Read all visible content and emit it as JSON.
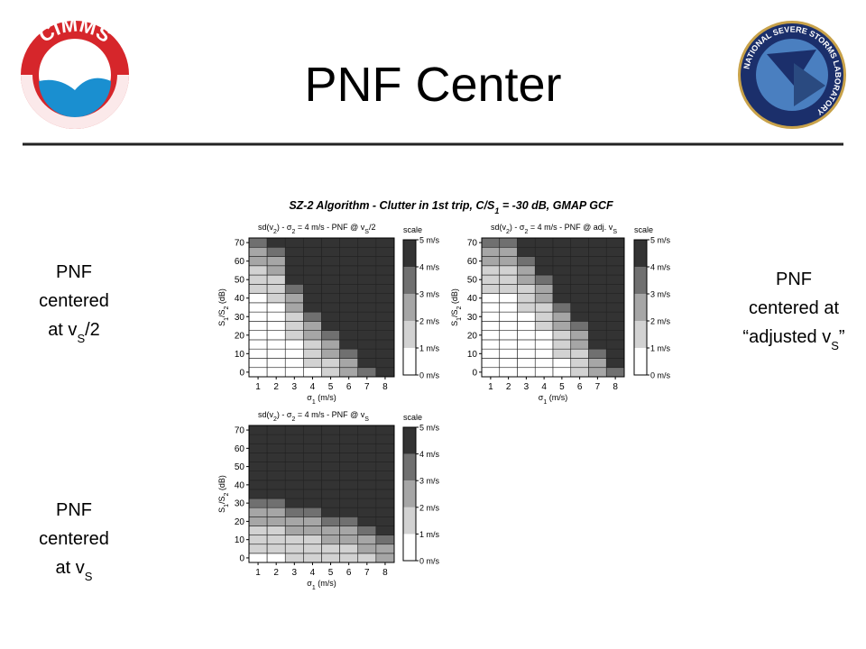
{
  "header": {
    "title": "PNF Center"
  },
  "logos": {
    "left": "CIMMS",
    "right": "NATIONAL SEVERE STORMS LABORATORY"
  },
  "figure_title": [
    "SZ-2 Algorithm - Clutter in 1st trip, C/S",
    "1",
    " = -30 dB, GMAP GCF"
  ],
  "side_labels": [
    {
      "lines": [
        [
          "PNF"
        ],
        [
          "centered"
        ],
        [
          "at v",
          "S",
          "/2"
        ]
      ]
    },
    {
      "lines": [
        [
          "PNF"
        ],
        [
          "centered at"
        ],
        [
          "“adjusted v",
          "S",
          "”"
        ]
      ]
    },
    {
      "lines": [
        [
          "PNF"
        ],
        [
          "centered"
        ],
        [
          "at v",
          "S"
        ]
      ]
    }
  ],
  "chart_data": [
    {
      "type": "heatmap",
      "title": [
        "sd(v",
        "2",
        ") - σ",
        "2",
        " = 4 m/s - PNF @ v",
        "S",
        "/2"
      ],
      "x_label": [
        "σ",
        "1",
        " (m/s)"
      ],
      "y_label": [
        "S",
        "1",
        "/S",
        "2",
        " (dB)"
      ],
      "x": [
        1,
        2,
        3,
        4,
        5,
        6,
        7,
        8
      ],
      "xlim": [
        0.5,
        8.5
      ],
      "y": [
        0,
        5,
        10,
        15,
        20,
        25,
        30,
        35,
        40,
        45,
        50,
        55,
        60,
        65,
        70
      ],
      "ylim": [
        -2.5,
        72.5
      ],
      "yticks": [
        0,
        10,
        20,
        30,
        40,
        50,
        60,
        70
      ],
      "values": [
        [
          0.5,
          0.5,
          0.5,
          0.5,
          1.5,
          2.5,
          3.5,
          4.5
        ],
        [
          0.5,
          0.5,
          0.5,
          1.5,
          1.5,
          2.5,
          4.5,
          4.5
        ],
        [
          0.5,
          0.5,
          0.5,
          1.5,
          2.5,
          3.5,
          4.5,
          4.5
        ],
        [
          0.5,
          0.5,
          0.5,
          1.5,
          2.5,
          4.5,
          4.5,
          4.5
        ],
        [
          0.5,
          0.5,
          1.5,
          2.5,
          3.5,
          4.5,
          4.5,
          4.5
        ],
        [
          0.5,
          0.5,
          1.5,
          2.5,
          4.5,
          4.5,
          4.5,
          4.5
        ],
        [
          0.5,
          0.5,
          1.5,
          3.5,
          4.5,
          4.5,
          4.5,
          4.5
        ],
        [
          0.5,
          0.5,
          2.5,
          4.5,
          4.5,
          4.5,
          4.5,
          4.5
        ],
        [
          0.5,
          1.5,
          2.5,
          4.5,
          4.5,
          4.5,
          4.5,
          4.5
        ],
        [
          1.5,
          1.5,
          3.5,
          4.5,
          4.5,
          4.5,
          4.5,
          4.5
        ],
        [
          1.5,
          1.5,
          4.5,
          4.5,
          4.5,
          4.5,
          4.5,
          4.5
        ],
        [
          1.5,
          2.5,
          4.5,
          4.5,
          4.5,
          4.5,
          4.5,
          4.5
        ],
        [
          2.5,
          2.5,
          4.5,
          4.5,
          4.5,
          4.5,
          4.5,
          4.5
        ],
        [
          2.5,
          3.5,
          4.5,
          4.5,
          4.5,
          4.5,
          4.5,
          4.5
        ],
        [
          3.5,
          4.5,
          4.5,
          4.5,
          4.5,
          4.5,
          4.5,
          4.5
        ]
      ],
      "colorbar": {
        "label": "scale",
        "lim": [
          0,
          5
        ],
        "ticks": [
          {
            "value": 0,
            "label": "0 m/s"
          },
          {
            "value": 1,
            "label": "1 m/s"
          },
          {
            "value": 2,
            "label": "2 m/s"
          },
          {
            "value": 3,
            "label": "3 m/s"
          },
          {
            "value": 4,
            "label": "4 m/s"
          },
          {
            "value": 5,
            "label": "5 m/s"
          }
        ],
        "colors": [
          "#ffffff",
          "#d2d2d2",
          "#a6a6a6",
          "#707070",
          "#333333"
        ]
      }
    },
    {
      "type": "heatmap",
      "title": [
        "sd(v",
        "2",
        ") - σ",
        "2",
        " = 4 m/s - PNF @ adj. v",
        "S"
      ],
      "x_label": [
        "σ",
        "1",
        " (m/s)"
      ],
      "y_label": [
        "S",
        "1",
        "/S",
        "2",
        " (dB)"
      ],
      "x": [
        1,
        2,
        3,
        4,
        5,
        6,
        7,
        8
      ],
      "xlim": [
        0.5,
        8.5
      ],
      "y": [
        0,
        5,
        10,
        15,
        20,
        25,
        30,
        35,
        40,
        45,
        50,
        55,
        60,
        65,
        70
      ],
      "ylim": [
        -2.5,
        72.5
      ],
      "yticks": [
        0,
        10,
        20,
        30,
        40,
        50,
        60,
        70
      ],
      "values": [
        [
          0.5,
          0.5,
          0.5,
          0.5,
          0.5,
          1.5,
          2.5,
          3.5
        ],
        [
          0.5,
          0.5,
          0.5,
          0.5,
          0.5,
          1.5,
          2.5,
          4.5
        ],
        [
          0.5,
          0.5,
          0.5,
          0.5,
          1.5,
          1.5,
          3.5,
          4.5
        ],
        [
          0.5,
          0.5,
          0.5,
          0.5,
          1.5,
          2.5,
          4.5,
          4.5
        ],
        [
          0.5,
          0.5,
          0.5,
          0.5,
          1.5,
          2.5,
          4.5,
          4.5
        ],
        [
          0.5,
          0.5,
          0.5,
          1.5,
          2.5,
          3.5,
          4.5,
          4.5
        ],
        [
          0.5,
          0.5,
          0.5,
          1.5,
          2.5,
          4.5,
          4.5,
          4.5
        ],
        [
          0.5,
          0.5,
          1.5,
          1.5,
          3.5,
          4.5,
          4.5,
          4.5
        ],
        [
          0.5,
          0.5,
          1.5,
          2.5,
          4.5,
          4.5,
          4.5,
          4.5
        ],
        [
          1.5,
          1.5,
          1.5,
          2.5,
          4.5,
          4.5,
          4.5,
          4.5
        ],
        [
          1.5,
          1.5,
          2.5,
          3.5,
          4.5,
          4.5,
          4.5,
          4.5
        ],
        [
          1.5,
          1.5,
          2.5,
          4.5,
          4.5,
          4.5,
          4.5,
          4.5
        ],
        [
          2.5,
          2.5,
          3.5,
          4.5,
          4.5,
          4.5,
          4.5,
          4.5
        ],
        [
          2.5,
          2.5,
          4.5,
          4.5,
          4.5,
          4.5,
          4.5,
          4.5
        ],
        [
          3.5,
          3.5,
          4.5,
          4.5,
          4.5,
          4.5,
          4.5,
          4.5
        ]
      ],
      "colorbar": {
        "label": "scale",
        "lim": [
          0,
          5
        ],
        "ticks": [
          {
            "value": 0,
            "label": "0 m/s"
          },
          {
            "value": 1,
            "label": "1 m/s"
          },
          {
            "value": 2,
            "label": "2 m/s"
          },
          {
            "value": 3,
            "label": "3 m/s"
          },
          {
            "value": 4,
            "label": "4 m/s"
          },
          {
            "value": 5,
            "label": "5 m/s"
          }
        ],
        "colors": [
          "#ffffff",
          "#d2d2d2",
          "#a6a6a6",
          "#707070",
          "#333333"
        ]
      }
    },
    {
      "type": "heatmap",
      "title": [
        "sd(v",
        "2",
        ") - σ",
        "2",
        " = 4 m/s - PNF @ v",
        "S"
      ],
      "x_label": [
        "σ",
        "1",
        " (m/s)"
      ],
      "y_label": [
        "S",
        "1",
        "/S",
        "2",
        " (dB)"
      ],
      "x": [
        1,
        2,
        3,
        4,
        5,
        6,
        7,
        8
      ],
      "xlim": [
        0.5,
        8.5
      ],
      "y": [
        0,
        5,
        10,
        15,
        20,
        25,
        30,
        35,
        40,
        45,
        50,
        55,
        60,
        65,
        70
      ],
      "ylim": [
        -2.5,
        72.5
      ],
      "yticks": [
        0,
        10,
        20,
        30,
        40,
        50,
        60,
        70
      ],
      "values": [
        [
          0.5,
          0.5,
          1.5,
          1.5,
          1.5,
          1.5,
          1.5,
          2.5
        ],
        [
          1.5,
          1.5,
          1.5,
          1.5,
          1.5,
          1.5,
          2.5,
          2.5
        ],
        [
          1.5,
          1.5,
          1.5,
          1.5,
          2.5,
          2.5,
          2.5,
          3.5
        ],
        [
          1.5,
          1.5,
          2.5,
          2.5,
          2.5,
          2.5,
          3.5,
          4.5
        ],
        [
          2.5,
          2.5,
          2.5,
          2.5,
          3.5,
          3.5,
          4.5,
          4.5
        ],
        [
          2.5,
          2.5,
          3.5,
          3.5,
          4.5,
          4.5,
          4.5,
          4.5
        ],
        [
          3.5,
          3.5,
          4.5,
          4.5,
          4.5,
          4.5,
          4.5,
          4.5
        ],
        [
          4.5,
          4.5,
          4.5,
          4.5,
          4.5,
          4.5,
          4.5,
          4.5
        ],
        [
          4.5,
          4.5,
          4.5,
          4.5,
          4.5,
          4.5,
          4.5,
          4.5
        ],
        [
          4.5,
          4.5,
          4.5,
          4.5,
          4.5,
          4.5,
          4.5,
          4.5
        ],
        [
          4.5,
          4.5,
          4.5,
          4.5,
          4.5,
          4.5,
          4.5,
          4.5
        ],
        [
          4.5,
          4.5,
          4.5,
          4.5,
          4.5,
          4.5,
          4.5,
          4.5
        ],
        [
          4.5,
          4.5,
          4.5,
          4.5,
          4.5,
          4.5,
          4.5,
          4.5
        ],
        [
          4.5,
          4.5,
          4.5,
          4.5,
          4.5,
          4.5,
          4.5,
          4.5
        ],
        [
          4.5,
          4.5,
          4.5,
          4.5,
          4.5,
          4.5,
          4.5,
          4.5
        ]
      ],
      "colorbar": {
        "label": "scale",
        "lim": [
          0,
          5
        ],
        "ticks": [
          {
            "value": 0,
            "label": "0 m/s"
          },
          {
            "value": 1,
            "label": "1 m/s"
          },
          {
            "value": 2,
            "label": "2 m/s"
          },
          {
            "value": 3,
            "label": "3 m/s"
          },
          {
            "value": 4,
            "label": "4 m/s"
          },
          {
            "value": 5,
            "label": "5 m/s"
          }
        ],
        "colors": [
          "#ffffff",
          "#d2d2d2",
          "#a6a6a6",
          "#707070",
          "#333333"
        ]
      }
    }
  ]
}
